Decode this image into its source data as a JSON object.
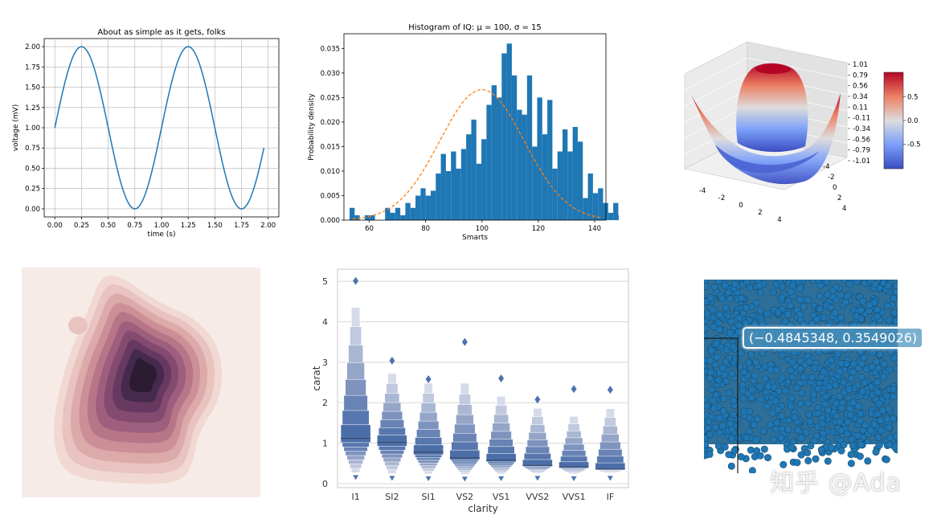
{
  "chart_data": [
    {
      "type": "line",
      "title": "About as simple as it gets, folks",
      "xlabel": "time (s)",
      "ylabel": "voltage (mV)",
      "function": "1 + sin(2*pi*t)",
      "xlim": [
        0,
        2
      ],
      "ylim": [
        0,
        2
      ],
      "xticks": [
        "0.00",
        "0.25",
        "0.50",
        "0.75",
        "1.00",
        "1.25",
        "1.50",
        "1.75",
        "2.00"
      ],
      "yticks": [
        "0.00",
        "0.25",
        "0.50",
        "0.75",
        "1.00",
        "1.25",
        "1.50",
        "1.75",
        "2.00"
      ],
      "grid": true,
      "line_color": "#1f77b4"
    },
    {
      "type": "bar",
      "title": "Histogram of IQ: μ = 100, σ = 15",
      "xlabel": "Smarts",
      "ylabel": "Probability density",
      "xlim": [
        51,
        144
      ],
      "ylim": [
        0,
        0.038
      ],
      "xticks": [
        60,
        80,
        100,
        120,
        140
      ],
      "yticks": [
        "0.000",
        "0.005",
        "0.010",
        "0.015",
        "0.020",
        "0.025",
        "0.030",
        "0.035"
      ],
      "bin_width": 1.8,
      "bins_start": 53,
      "values": [
        0.0025,
        0.001,
        0,
        0.001,
        0.001,
        0,
        0,
        0.0025,
        0.0015,
        0.0025,
        0.001,
        0.0035,
        0.0025,
        0.005,
        0.0065,
        0.005,
        0.006,
        0.0095,
        0.0135,
        0.01,
        0.014,
        0.0105,
        0.0145,
        0.0175,
        0.0205,
        0.0115,
        0.0165,
        0.0235,
        0.0275,
        0.025,
        0.034,
        0.036,
        0.0295,
        0.0225,
        0.0215,
        0.0295,
        0.015,
        0.025,
        0.0175,
        0.0245,
        0.0105,
        0.014,
        0.0185,
        0.014,
        0.019,
        0.016,
        0.0045,
        0.0095,
        0.0055,
        0.0065,
        0.0035,
        0.0015,
        0.0035,
        0.001,
        0,
        0.001,
        0.0005,
        0.001,
        0.001,
        0.0015
      ],
      "bar_color": "#1f77b4",
      "pdf": {
        "mu": 100,
        "sigma": 15,
        "color": "#ff7f0e"
      }
    },
    {
      "type": "surface",
      "xlabel": "",
      "ylabel": "",
      "xticks": [
        -4,
        -2,
        0,
        2,
        4
      ],
      "yticks": [
        -4,
        -2,
        0,
        2,
        4
      ],
      "zticks": [
        "1.01",
        "0.79",
        "0.56",
        "0.34",
        "0.11",
        "-0.11",
        "-0.34",
        "-0.56",
        "-0.79",
        "-1.01"
      ],
      "colormap": "coolwarm",
      "colorbar_ticks": [
        "0.5",
        "0.0",
        "-0.5"
      ],
      "zlim": [
        -1.01,
        1.01
      ]
    },
    {
      "type": "heatmap",
      "subtype": "kde-contour",
      "levels": 10,
      "colors": [
        "#f7ebe8",
        "#f1d8d3",
        "#e8c3bf",
        "#dcaaa9",
        "#cc8f97",
        "#b77588",
        "#9e5e7d",
        "#844a70",
        "#673961",
        "#462a4d",
        "#2b1c34"
      ]
    },
    {
      "type": "boxen",
      "xlabel": "clarity",
      "ylabel": "carat",
      "categories": [
        "I1",
        "SI2",
        "SI1",
        "VS2",
        "VS1",
        "VVS2",
        "VVS1",
        "IF"
      ],
      "yticks": [
        "0",
        "1",
        "2",
        "3",
        "4",
        "5"
      ],
      "ylim": [
        -0.1,
        5.3
      ],
      "medians": [
        1.12,
        1.02,
        0.78,
        0.64,
        0.58,
        0.45,
        0.41,
        0.36
      ],
      "lower_ends": [
        0.27,
        0.25,
        0.24,
        0.23,
        0.24,
        0.25,
        0.24,
        0.25
      ],
      "upper_ends": [
        4.35,
        2.72,
        2.48,
        2.48,
        2.16,
        1.86,
        1.66,
        1.85
      ],
      "outliers_max": [
        5.01,
        3.04,
        2.58,
        3.5,
        2.6,
        2.08,
        2.34,
        2.32
      ],
      "box_color": "#4c72b0",
      "grid": true
    },
    {
      "type": "scatter",
      "readout": "(−0.4845348, 0.3549026)",
      "point_color": "#1f77b4"
    }
  ],
  "watermark": "知乎 @Ada"
}
